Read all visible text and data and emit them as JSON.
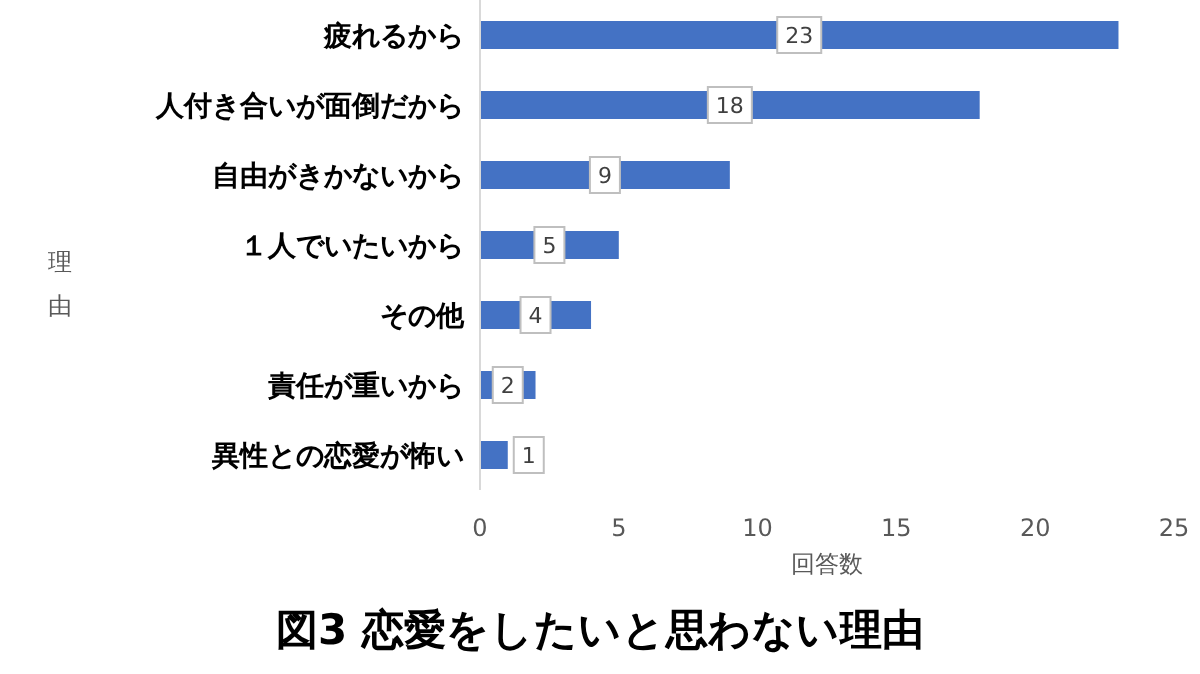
{
  "chart_data": {
    "type": "bar",
    "orientation": "horizontal",
    "title": "図3 恋愛をしたいと思わない理由",
    "xlabel": "回答数",
    "ylabel": "理由",
    "categories": [
      "疲れるから",
      "人付き合いが面倒だから",
      "自由がきかないから",
      "１人でいたいから",
      "その他",
      "責任が重いから",
      "異性との恋愛が怖い"
    ],
    "values": [
      23,
      18,
      9,
      5,
      4,
      2,
      1
    ],
    "color": "#4472c4",
    "xlim": [
      0,
      25
    ],
    "xticks": [
      0,
      5,
      10,
      15,
      20,
      25
    ],
    "data_labels": true
  }
}
